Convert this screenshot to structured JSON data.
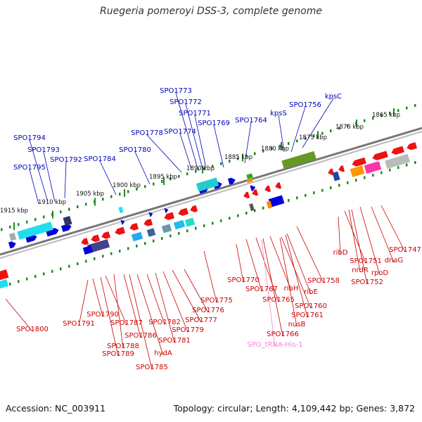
{
  "header": {
    "title": "Ruegeria pomeroyi DSS-3, complete genome"
  },
  "footer": {
    "accession": "Accession: NC_003911",
    "topology": "Topology: circular; Length: 4,109,442 bp; Genes: 3,872"
  },
  "colors": {
    "forward_label": "#0000bb",
    "reverse_label": "#cc0000",
    "trna_label": "#ee88cc",
    "ticks": "#228822",
    "backbone": "#888888"
  },
  "scale": [
    "1915 kbp",
    "1910 kbp",
    "1905 kbp",
    "1900 kbp",
    "1895 kbp",
    "1890 kbp",
    "1885 kbp",
    "1880 kbp",
    "1875 kbp",
    "1870 kbp",
    "1865 kbp"
  ],
  "forward_genes": [
    "SPO1773",
    "SPO1772",
    "SPO1771",
    "SPO1769",
    "SPO1778",
    "SPO1774",
    "SPO1764",
    "SPO1756",
    "kpsC",
    "kpsS",
    "SPO1794",
    "SPO1793",
    "SPO1792",
    "SPO1795",
    "SPO1784",
    "SPO1780"
  ],
  "reverse_genes": [
    "SPO1800",
    "SPO1791",
    "SPO1790",
    "SPO1787",
    "SPO1788",
    "SPO1789",
    "SPO1786",
    "hydA",
    "SPO1785",
    "SPO1782",
    "SPO1781",
    "SPO1779",
    "SPO1777",
    "SPO1776",
    "SPO1775",
    "SPO1770",
    "SPO1767",
    "SPO1765",
    "SPO1766",
    "ribH",
    "SPO1760",
    "ribE",
    "SPO1761",
    "nusB",
    "SPO1758",
    "ribD",
    "SPO1751",
    "nrdR",
    "SPO1752",
    "rpoD",
    "SPO1747",
    "dnaG"
  ],
  "trna_genes": [
    "SPO_tRNA-His-1"
  ]
}
